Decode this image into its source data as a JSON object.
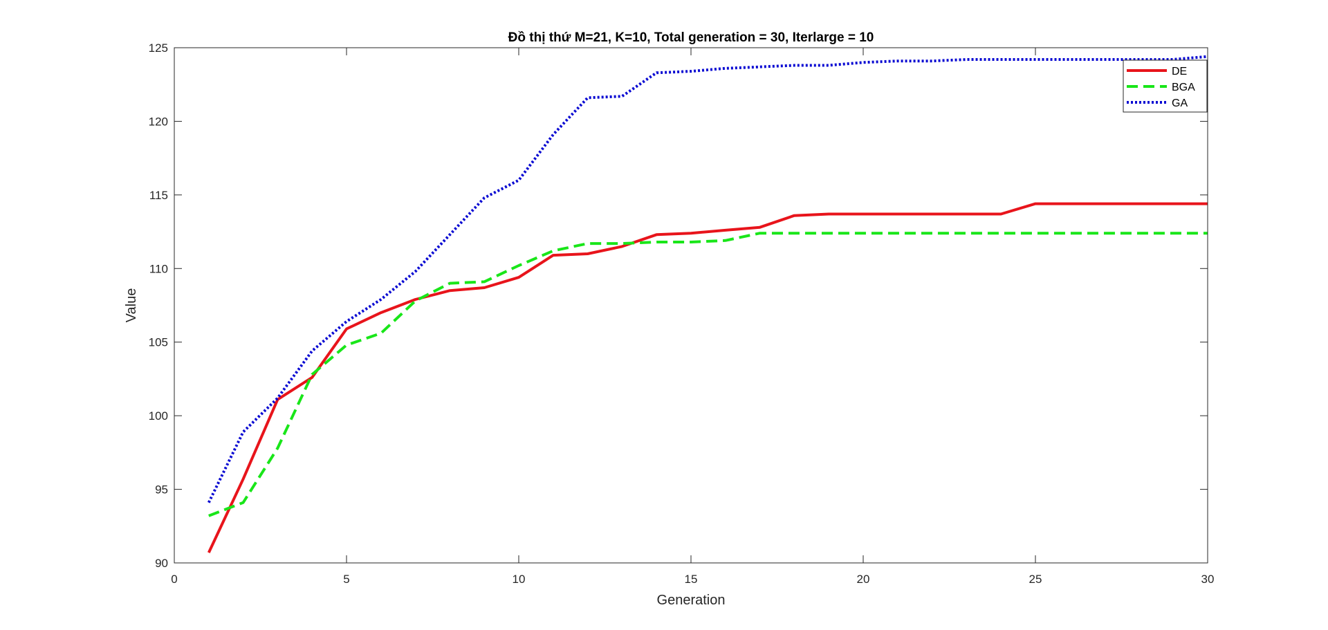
{
  "chart_data": {
    "type": "line",
    "title": "Đồ thị thứ M=21, K=10, Total generation = 30, Iterlarge = 10",
    "xlabel": "Generation",
    "ylabel": "Value",
    "xlim": [
      0,
      30
    ],
    "ylim": [
      90,
      125
    ],
    "xticks": [
      0,
      5,
      10,
      15,
      20,
      25,
      30
    ],
    "yticks": [
      90,
      95,
      100,
      105,
      110,
      115,
      120,
      125
    ],
    "xtick_labels": [
      "0",
      "5",
      "10",
      "15",
      "20",
      "25",
      "30"
    ],
    "ytick_labels": [
      "90",
      "95",
      "100",
      "105",
      "110",
      "115",
      "120",
      "125"
    ],
    "grid": false,
    "legend_position": "top-right",
    "x": [
      1,
      2,
      3,
      4,
      5,
      6,
      7,
      8,
      9,
      10,
      11,
      12,
      13,
      14,
      15,
      16,
      17,
      18,
      19,
      20,
      21,
      22,
      23,
      24,
      25,
      26,
      27,
      28,
      29,
      30
    ],
    "series": [
      {
        "name": "DE",
        "color": "#e8141b",
        "style": "solid",
        "values": [
          90.7,
          95.7,
          101.1,
          102.6,
          105.9,
          107.0,
          107.9,
          108.5,
          108.7,
          109.4,
          110.9,
          111.0,
          111.5,
          112.3,
          112.4,
          112.6,
          112.8,
          113.6,
          113.7,
          113.7,
          113.7,
          113.7,
          113.7,
          113.7,
          114.4,
          114.4,
          114.4,
          114.4,
          114.4,
          114.4
        ]
      },
      {
        "name": "BGA",
        "color": "#19e619",
        "style": "dashed",
        "values": [
          93.2,
          94.1,
          97.8,
          102.8,
          104.8,
          105.6,
          107.8,
          109.0,
          109.1,
          110.2,
          111.2,
          111.7,
          111.7,
          111.8,
          111.8,
          111.9,
          112.4,
          112.4,
          112.4,
          112.4,
          112.4,
          112.4,
          112.4,
          112.4,
          112.4,
          112.4,
          112.4,
          112.4,
          112.4,
          112.4
        ]
      },
      {
        "name": "GA",
        "color": "#0a0ad2",
        "style": "dotted",
        "values": [
          94.1,
          98.9,
          101.2,
          104.4,
          106.4,
          107.9,
          109.8,
          112.3,
          114.8,
          116.0,
          119.1,
          121.6,
          121.7,
          123.3,
          123.4,
          123.6,
          123.7,
          123.8,
          123.8,
          124.0,
          124.1,
          124.1,
          124.2,
          124.2,
          124.2,
          124.2,
          124.2,
          124.2,
          124.2,
          124.4
        ]
      }
    ]
  }
}
